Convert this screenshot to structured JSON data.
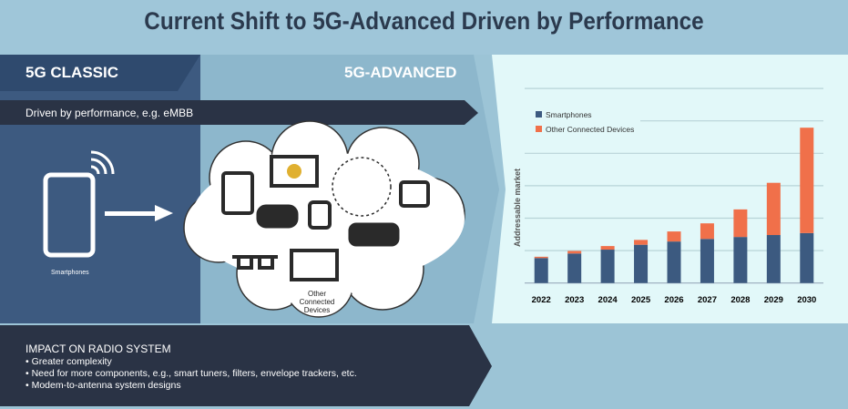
{
  "title": "Current Shift to 5G-Advanced Driven by Performance",
  "left_header": "5G CLASSIC",
  "right_header": "5G-ADVANCED",
  "driver_banner": "Driven by performance, e.g. eMBB",
  "smartphones_label": "Smartphones",
  "cloud_label": "Other Connected Devices",
  "impact": {
    "heading": "IMPACT ON RADIO SYSTEM",
    "bullets": [
      "• Greater complexity",
      "• Need for more components, e.g., smart tuners, filters, envelope trackers, etc.",
      "• Modem-to-antenna system designs"
    ]
  },
  "colors": {
    "smartphones": "#3c5a80",
    "other": "#f0704a"
  },
  "chart_data": {
    "type": "bar",
    "stacked": true,
    "title": "",
    "xlabel": "",
    "ylabel": "Addressable market",
    "categories": [
      "2022",
      "2023",
      "2024",
      "2025",
      "2026",
      "2027",
      "2028",
      "2029",
      "2030"
    ],
    "series": [
      {
        "name": "Smartphones",
        "values": [
          0.77,
          0.91,
          1.03,
          1.18,
          1.28,
          1.36,
          1.42,
          1.48,
          1.54
        ]
      },
      {
        "name": "Other Connected Devices",
        "values": [
          0.04,
          0.08,
          0.11,
          0.15,
          0.31,
          0.48,
          0.85,
          1.61,
          3.25
        ]
      }
    ],
    "ylim": [
      0,
      6
    ],
    "grid": true,
    "legend": "top-left"
  }
}
